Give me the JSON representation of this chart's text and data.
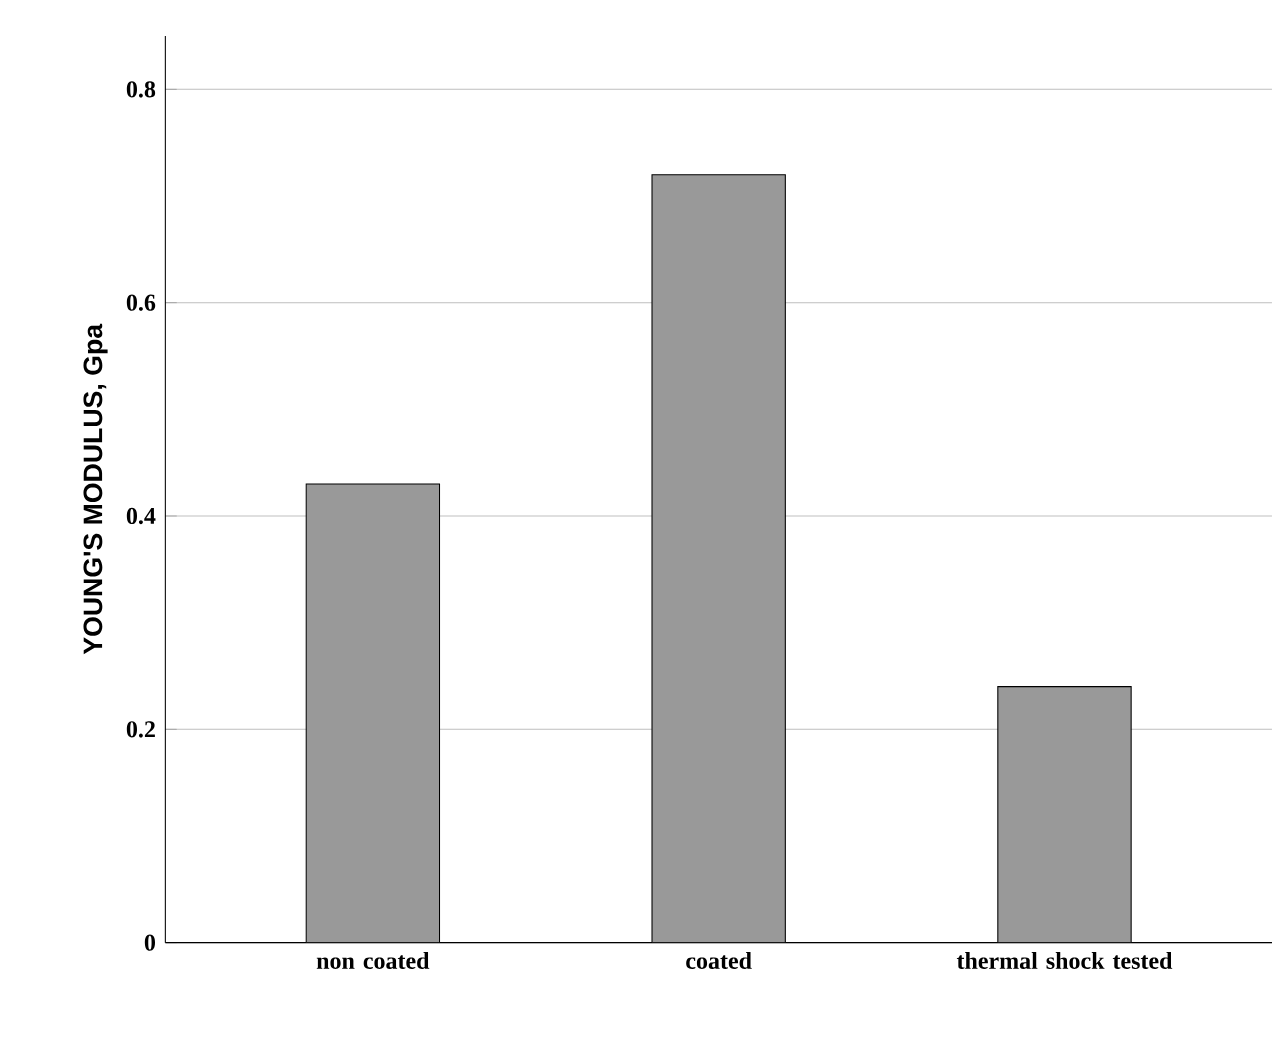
{
  "chart_data": {
    "type": "bar",
    "ylabel": "YOUNG'S MODULUS, Gpa",
    "categories": [
      "non coated",
      "coated",
      "thermal shock tested"
    ],
    "values": [
      0.43,
      0.72,
      0.24
    ],
    "color": "#999999",
    "ylim": [
      0,
      0.85
    ],
    "yticks": [
      0,
      0.2,
      0.4,
      0.6,
      0.8
    ],
    "grid": "y"
  }
}
